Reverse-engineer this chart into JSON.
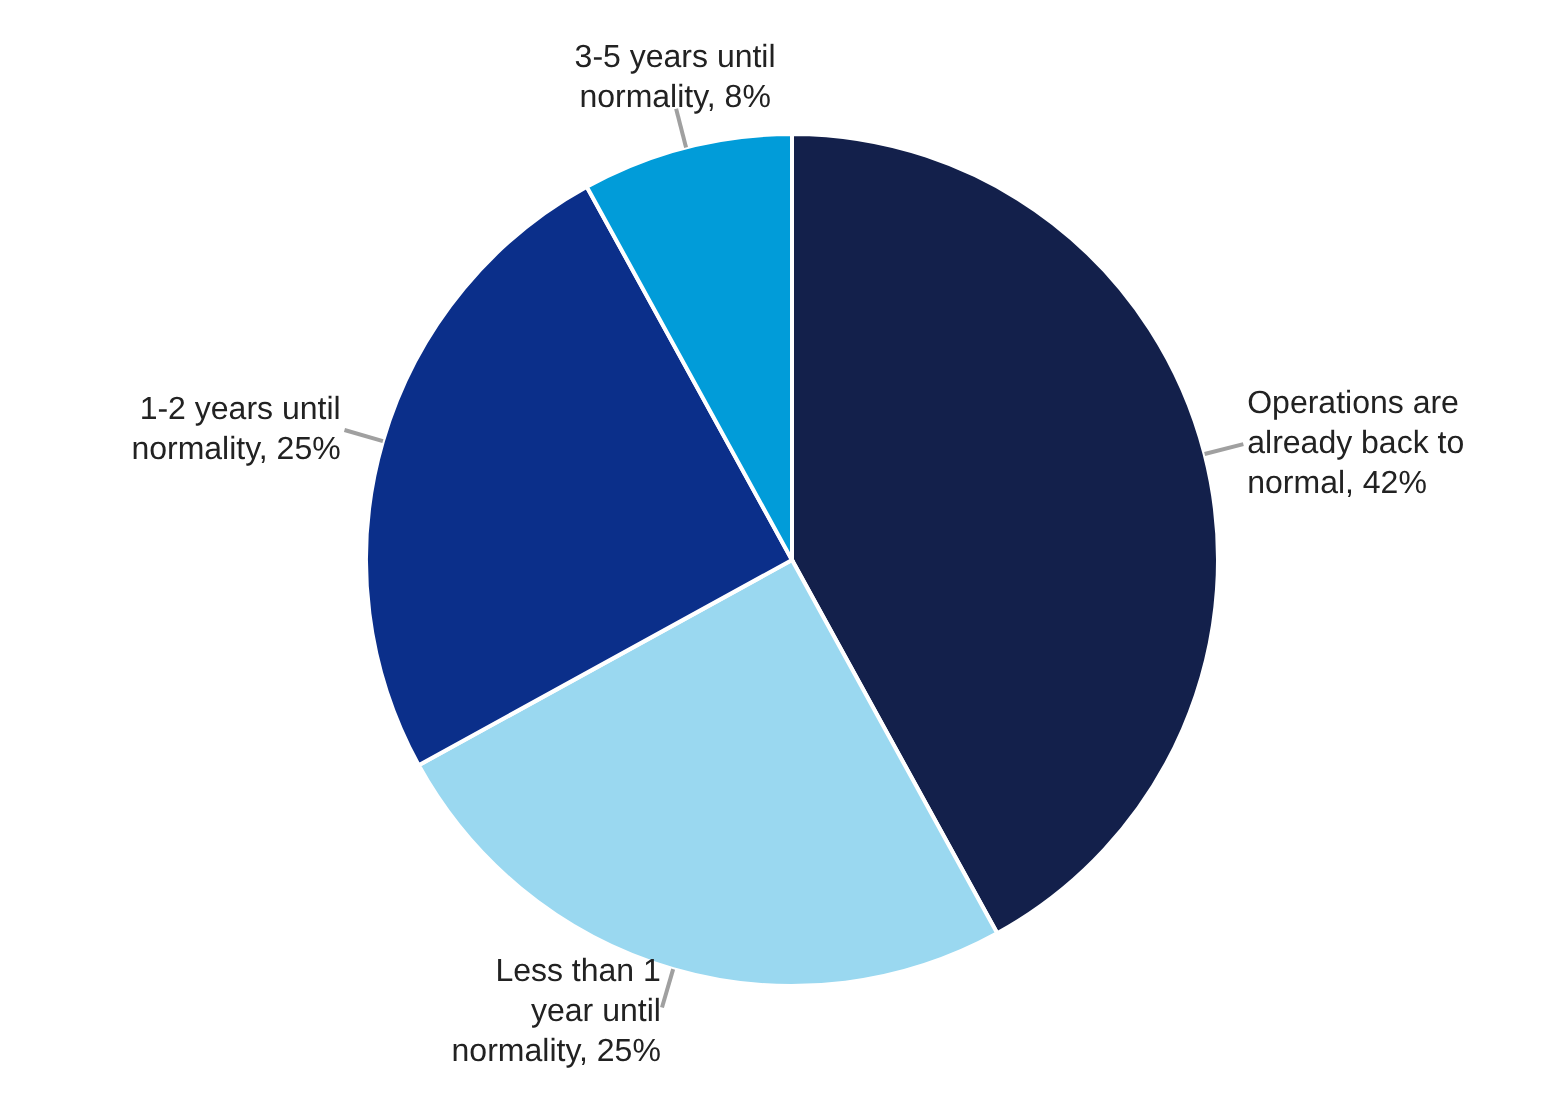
{
  "chart_data": {
    "type": "pie",
    "categories": [
      "Operations are already back to normal",
      "Less than 1 year until normality",
      "1-2 years until normality",
      "3-5 years until normality"
    ],
    "values": [
      42,
      25,
      25,
      8
    ],
    "value_labels": [
      "42%",
      "25%",
      "25%",
      "8%"
    ],
    "colors": [
      "#13204b",
      "#9ad8f0",
      "#0b2f8a",
      "#019cd9"
    ]
  }
}
